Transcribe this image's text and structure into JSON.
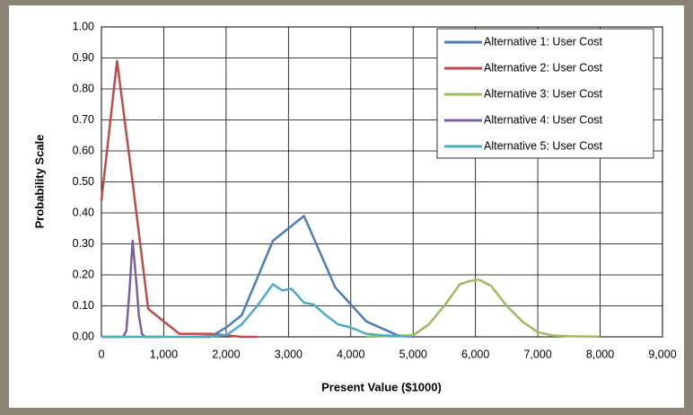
{
  "chart_data": {
    "type": "line",
    "xlabel": "Present Value ($1000)",
    "ylabel": "Probability Scale",
    "xlim": [
      0,
      9000
    ],
    "ylim": [
      0,
      1
    ],
    "xticks": [
      0,
      {
        "value": 1000,
        "label": "1,000"
      },
      {
        "value": 2000,
        "label": "2,000"
      },
      {
        "value": 3000,
        "label": "3,000"
      },
      {
        "value": 4000,
        "label": "4,000"
      },
      {
        "value": 5000,
        "label": "5,000"
      },
      {
        "value": 6000,
        "label": "6,000"
      },
      {
        "value": 7000,
        "label": "7,000"
      },
      {
        "value": 8000,
        "label": "8,000"
      },
      {
        "value": 9000,
        "label": "9,000"
      }
    ],
    "yticks": [
      {
        "value": 0,
        "label": "0.00"
      },
      {
        "value": 0.1,
        "label": "0.10"
      },
      {
        "value": 0.2,
        "label": "0.20"
      },
      {
        "value": 0.3,
        "label": "0.30"
      },
      {
        "value": 0.4,
        "label": "0.40"
      },
      {
        "value": 0.5,
        "label": "0.50"
      },
      {
        "value": 0.6,
        "label": "0.60"
      },
      {
        "value": 0.7,
        "label": "0.70"
      },
      {
        "value": 0.8,
        "label": "0.80"
      },
      {
        "value": 0.9,
        "label": "0.90"
      },
      {
        "value": 1,
        "label": "1.00"
      }
    ],
    "grid": true,
    "legend": "top-right",
    "series": [
      {
        "name": "Alternative 1: User Cost",
        "color": "#4a7ebb",
        "x": [
          1500,
          1750,
          2000,
          2250,
          2750,
          3250,
          3750,
          4250,
          4750,
          5000
        ],
        "values": [
          0,
          0,
          0.03,
          0.07,
          0.31,
          0.39,
          0.16,
          0.05,
          0.005,
          0
        ]
      },
      {
        "name": "Alternative 2: User Cost",
        "color": "#be4b48",
        "x": [
          0,
          250,
          500,
          750,
          1250,
          1750,
          2250,
          2500
        ],
        "values": [
          0.44,
          0.89,
          0.5,
          0.09,
          0.01,
          0.01,
          0,
          0
        ]
      },
      {
        "name": "Alternative 3: User Cost",
        "color": "#9bbb59",
        "x": [
          4250,
          5000,
          5250,
          5500,
          5750,
          5900,
          6050,
          6250,
          6500,
          6750,
          7000,
          7250,
          7500,
          8000
        ],
        "values": [
          0,
          0.005,
          0.04,
          0.1,
          0.17,
          0.18,
          0.185,
          0.165,
          0.1,
          0.05,
          0.015,
          0.004,
          0.002,
          0.001
        ]
      },
      {
        "name": "Alternative 4: User Cost",
        "color": "#7d60a0",
        "x": [
          0,
          350,
          400,
          450,
          500,
          550,
          600,
          650,
          700,
          1000
        ],
        "values": [
          0,
          0,
          0.02,
          0.15,
          0.31,
          0.2,
          0.07,
          0.01,
          0,
          0
        ]
      },
      {
        "name": "Alternative 5: User Cost",
        "color": "#4bacc6",
        "x": [
          0,
          1500,
          2000,
          2250,
          2500,
          2750,
          2900,
          3050,
          3250,
          3400,
          3600,
          3800,
          4000,
          4250,
          4500,
          5000
        ],
        "values": [
          0,
          0,
          0.005,
          0.04,
          0.1,
          0.17,
          0.15,
          0.155,
          0.11,
          0.105,
          0.07,
          0.04,
          0.03,
          0.01,
          0.005,
          0
        ]
      }
    ]
  }
}
